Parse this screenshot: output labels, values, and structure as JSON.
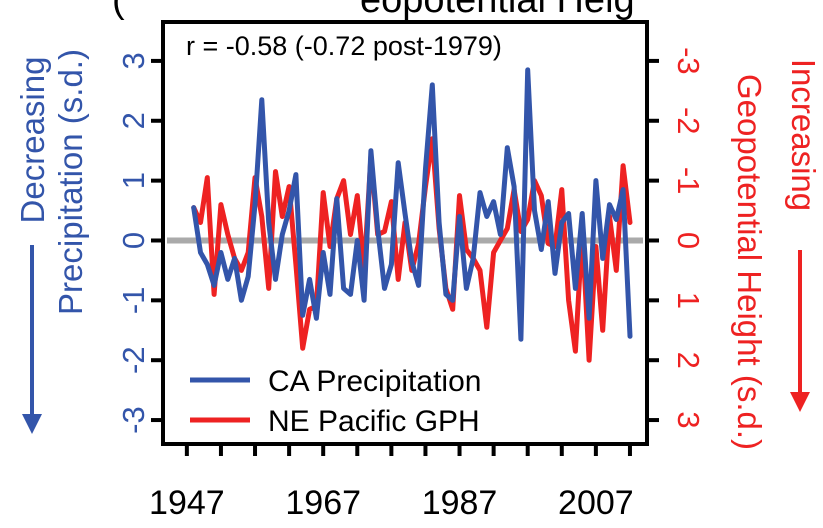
{
  "chart_data": {
    "type": "line",
    "title_partial": "(",
    "title_tail": "eopotential Heig",
    "annotation": "r = -0.58 (-0.72 post-1979)",
    "left_axis_label_line1": "Decreasing",
    "left_axis_label_line2": "Precipitation (s.d.)",
    "right_axis_label_line1": "Increasing",
    "right_axis_label_line2": "Geopotential Height (s.d.)",
    "left_ticks": [
      "-3",
      "-2",
      "-1",
      "0",
      "1",
      "2",
      "3"
    ],
    "right_ticks": [
      "3",
      "2",
      "1",
      "0",
      "-1",
      "-2",
      "-3"
    ],
    "x_ticks": [
      "1947",
      "1967",
      "1987",
      "2007"
    ],
    "ylim": [
      -3.4,
      3.65
    ],
    "xlim": [
      1943.5,
      2014.5
    ],
    "zero_line_color": "#aaaaaa",
    "colors": {
      "blue": "#3355aa",
      "red": "#ee2222"
    },
    "legend": [
      {
        "label": "CA Precipitation",
        "color": "#3355aa"
      },
      {
        "label": "NE Pacific GPH",
        "color": "#ee2222"
      }
    ],
    "series": [
      {
        "name": "CA Precipitation",
        "color": "#3355aa",
        "x": [
          1948,
          1949,
          1950,
          1951,
          1952,
          1953,
          1954,
          1955,
          1956,
          1957,
          1958,
          1959,
          1960,
          1961,
          1962,
          1963,
          1964,
          1965,
          1966,
          1967,
          1968,
          1969,
          1970,
          1971,
          1972,
          1973,
          1974,
          1975,
          1976,
          1977,
          1978,
          1979,
          1980,
          1981,
          1982,
          1983,
          1984,
          1985,
          1986,
          1987,
          1988,
          1989,
          1990,
          1991,
          1992,
          1993,
          1994,
          1995,
          1996,
          1997,
          1998,
          1999,
          2000,
          2001,
          2002,
          2003,
          2004,
          2005,
          2006,
          2007,
          2008,
          2009,
          2010,
          2011,
          2012
        ],
        "values": [
          0.55,
          -0.2,
          -0.4,
          -0.75,
          -0.2,
          -0.65,
          -0.3,
          -1.0,
          -0.6,
          0.6,
          2.35,
          0.3,
          -0.65,
          0.1,
          0.5,
          1.1,
          -1.25,
          -0.65,
          -1.3,
          -0.2,
          -0.9,
          0.7,
          -0.8,
          -0.9,
          0.0,
          -1.0,
          1.5,
          0.2,
          -0.8,
          -0.4,
          1.3,
          0.45,
          -0.35,
          -0.75,
          1.2,
          2.6,
          0.3,
          -0.9,
          -1.0,
          0.4,
          -0.8,
          -0.3,
          0.8,
          0.4,
          0.65,
          0.1,
          1.55,
          0.9,
          -1.65,
          2.85,
          0.5,
          -0.15,
          0.65,
          -0.55,
          0.3,
          0.45,
          -0.8,
          0.45,
          -1.3,
          1.0,
          -0.3,
          0.6,
          0.35,
          0.85,
          -1.6
        ]
      },
      {
        "name": "NE Pacific GPH",
        "color": "#ee2222",
        "x": [
          1948,
          1949,
          1950,
          1951,
          1952,
          1953,
          1954,
          1955,
          1956,
          1957,
          1958,
          1959,
          1960,
          1961,
          1962,
          1963,
          1964,
          1965,
          1966,
          1967,
          1968,
          1969,
          1970,
          1971,
          1972,
          1973,
          1974,
          1975,
          1976,
          1977,
          1978,
          1979,
          1980,
          1981,
          1982,
          1983,
          1984,
          1985,
          1986,
          1987,
          1988,
          1989,
          1990,
          1991,
          1992,
          1993,
          1994,
          1995,
          1996,
          1997,
          1998,
          1999,
          2000,
          2001,
          2002,
          2003,
          2004,
          2005,
          2006,
          2007,
          2008,
          2009,
          2010,
          2011,
          2012
        ],
        "values": [
          -0.55,
          -0.3,
          -1.05,
          0.9,
          -0.6,
          -0.1,
          0.3,
          0.5,
          0.2,
          -1.05,
          -0.4,
          0.8,
          -1.15,
          -0.4,
          -0.9,
          0.4,
          1.8,
          1.15,
          1.1,
          -0.8,
          0.1,
          -0.7,
          -1.0,
          -0.1,
          -0.75,
          0.5,
          -1.4,
          -0.1,
          -0.15,
          -0.65,
          0.65,
          -0.3,
          0.5,
          0.05,
          -0.9,
          -1.7,
          -0.2,
          0.8,
          1.15,
          -0.75,
          0.15,
          0.3,
          0.5,
          1.45,
          0.2,
          0.0,
          -0.2,
          -0.85,
          -0.15,
          -0.35,
          -1.0,
          -0.75,
          0.05,
          0.1,
          -0.85,
          1.0,
          1.85,
          -0.15,
          2.0,
          0.1,
          1.5,
          -0.4,
          0.5,
          -1.25,
          -0.3
        ]
      }
    ]
  }
}
